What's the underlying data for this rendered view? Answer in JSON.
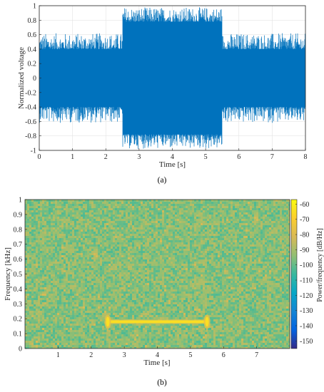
{
  "chart_data": [
    {
      "type": "line",
      "caption": "(a)",
      "xlabel": "Time [s]",
      "ylabel": "Normalized voltage",
      "xlim": [
        0,
        8
      ],
      "ylim": [
        -1,
        1
      ],
      "xticks": [
        0,
        1,
        2,
        3,
        4,
        5,
        6,
        7,
        8
      ],
      "yticks": [
        -1,
        -0.8,
        -0.6,
        -0.4,
        -0.2,
        0,
        0.2,
        0.4,
        0.6,
        0.8,
        1
      ],
      "grid": true,
      "series_color": "#0072BD",
      "segments": [
        {
          "x_start": 0,
          "x_end": 2.5,
          "core_amplitude": 0.4,
          "peak_amplitude": 0.62
        },
        {
          "x_start": 2.5,
          "x_end": 5.5,
          "core_amplitude": 0.78,
          "peak_amplitude": 0.98
        },
        {
          "x_start": 5.5,
          "x_end": 8,
          "core_amplitude": 0.4,
          "peak_amplitude": 0.62
        }
      ]
    },
    {
      "type": "heatmap",
      "caption": "(b)",
      "xlabel": "Time [s]",
      "ylabel": "Frequency [kHz]",
      "xlim": [
        0,
        8
      ],
      "ylim": [
        0,
        1
      ],
      "xticks": [
        1,
        2,
        3,
        4,
        5,
        6,
        7
      ],
      "yticks": [
        0,
        0.1,
        0.2,
        0.3,
        0.4,
        0.5,
        0.6,
        0.7,
        0.8,
        0.9,
        1
      ],
      "colorbar_label": "Power/frequency [dB/Hz]",
      "colorbar_range": [
        -155,
        -57
      ],
      "colorbar_ticks": [
        -60,
        -70,
        -80,
        -90,
        -100,
        -110,
        -120,
        -130,
        -140,
        -150
      ],
      "background_level": -95,
      "tone": {
        "frequency": 0.18,
        "x_start": 2.5,
        "x_end": 5.5,
        "level": -65
      }
    }
  ]
}
